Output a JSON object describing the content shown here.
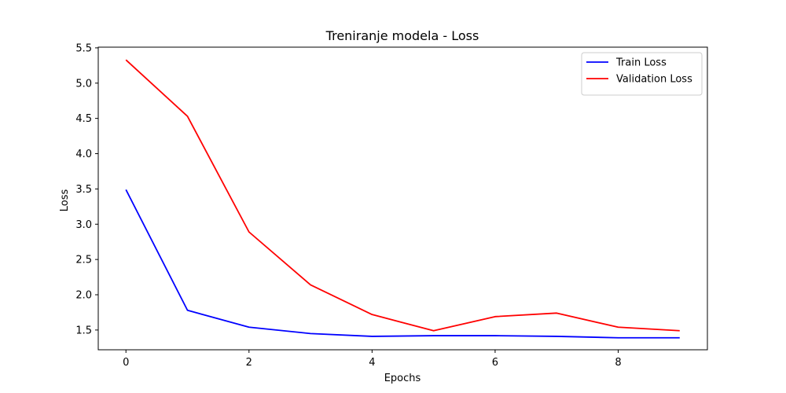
{
  "chart_data": {
    "type": "line",
    "title": "Treniranje modela - Loss",
    "xlabel": "Epochs",
    "ylabel": "Loss",
    "x": [
      0,
      1,
      2,
      3,
      4,
      5,
      6,
      7,
      8,
      9
    ],
    "xlim": [
      -0.45,
      9.45
    ],
    "ylim": [
      1.22,
      5.51
    ],
    "x_ticks": [
      0,
      2,
      4,
      6,
      8
    ],
    "x_tick_labels": [
      "0",
      "2",
      "4",
      "6",
      "8"
    ],
    "y_ticks": [
      1.5,
      2.0,
      2.5,
      3.0,
      3.5,
      4.0,
      4.5,
      5.0,
      5.5
    ],
    "y_tick_labels": [
      "1.5",
      "2.0",
      "2.5",
      "3.0",
      "3.5",
      "4.0",
      "4.5",
      "5.0",
      "5.5"
    ],
    "grid": false,
    "legend_position": "top-right",
    "series": [
      {
        "name": "Train Loss",
        "color": "#0000ff",
        "values": [
          3.49,
          1.78,
          1.54,
          1.45,
          1.41,
          1.42,
          1.42,
          1.41,
          1.39,
          1.39
        ]
      },
      {
        "name": "Validation Loss",
        "color": "#ff0000",
        "values": [
          5.33,
          4.53,
          2.89,
          2.14,
          1.72,
          1.49,
          1.69,
          1.74,
          1.54,
          1.49
        ]
      }
    ]
  }
}
